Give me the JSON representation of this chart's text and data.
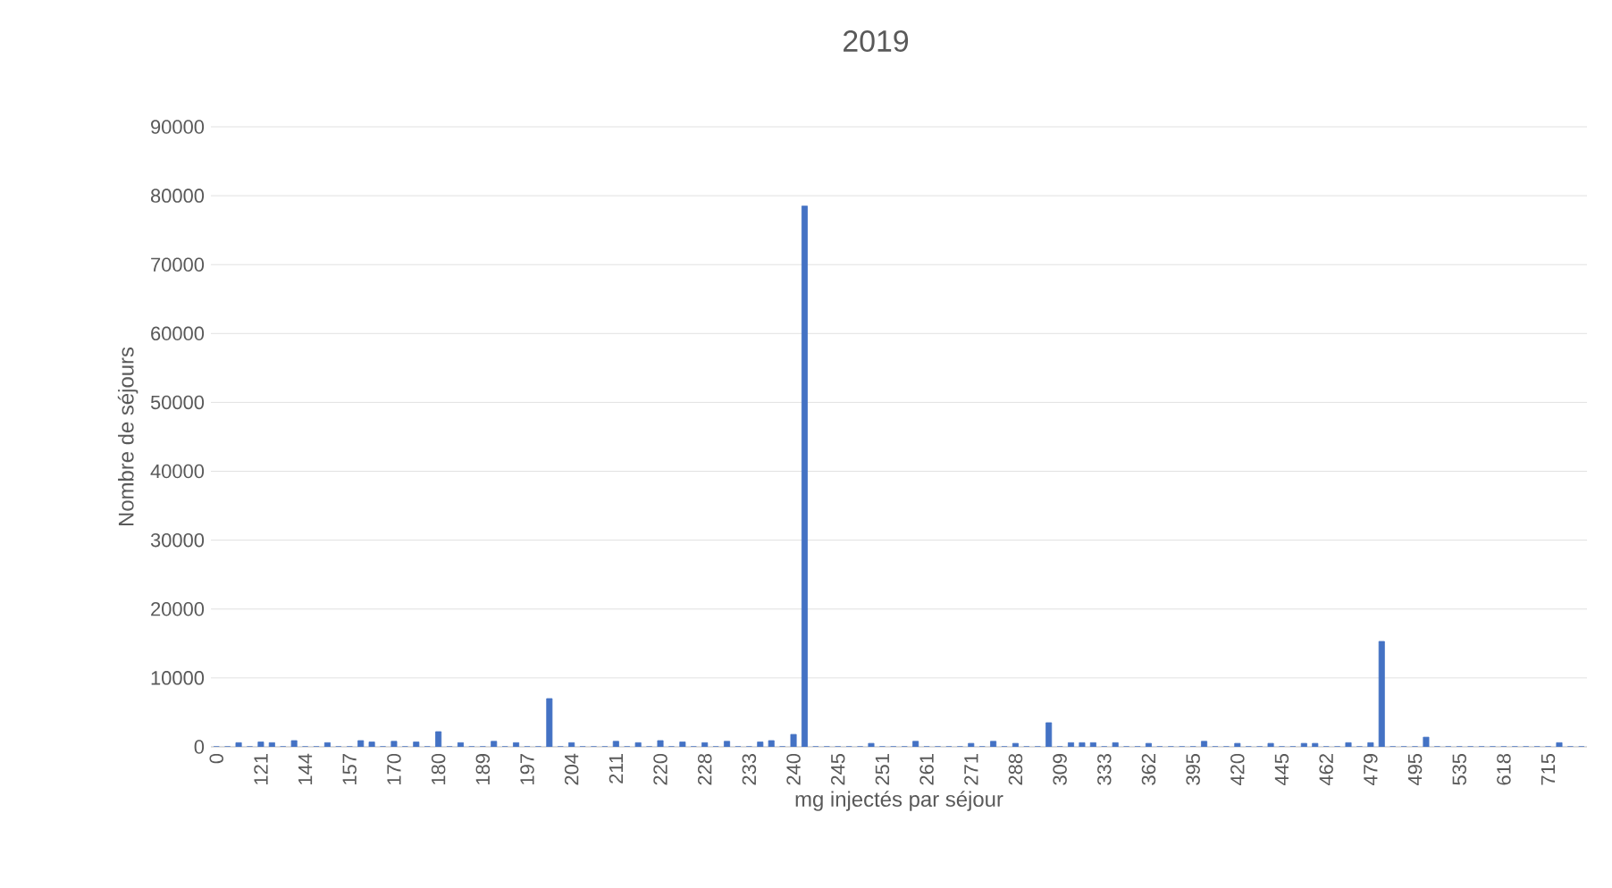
{
  "chart_data": {
    "type": "bar",
    "title": "2019",
    "xlabel": "mg injectés par séjour",
    "ylabel": "Nombre de séjours",
    "categories": [
      "0",
      null,
      null,
      null,
      "121",
      null,
      null,
      null,
      "144",
      null,
      null,
      null,
      "157",
      null,
      null,
      null,
      "170",
      null,
      null,
      null,
      "180",
      null,
      null,
      null,
      "189",
      null,
      null,
      null,
      "197",
      null,
      null,
      null,
      "204",
      null,
      null,
      null,
      "211",
      null,
      null,
      null,
      "220",
      null,
      null,
      null,
      "228",
      null,
      null,
      null,
      "233",
      null,
      null,
      null,
      "240",
      null,
      null,
      null,
      "245",
      null,
      null,
      null,
      "251",
      null,
      null,
      null,
      "261",
      null,
      null,
      null,
      "271",
      null,
      null,
      null,
      "288",
      null,
      null,
      null,
      "309",
      null,
      null,
      null,
      "333",
      null,
      null,
      null,
      "362",
      null,
      null,
      null,
      "395",
      null,
      null,
      null,
      "420",
      null,
      null,
      null,
      "445",
      null,
      null,
      null,
      "462",
      null,
      null,
      null,
      "479",
      null,
      null,
      null,
      "495",
      null,
      null,
      null,
      "535",
      null,
      null,
      null,
      "618",
      null,
      null,
      null,
      "715",
      null,
      null,
      null
    ],
    "values": [
      0,
      0,
      600,
      0,
      700,
      600,
      0,
      900,
      0,
      0,
      600,
      0,
      0,
      900,
      700,
      0,
      800,
      0,
      700,
      0,
      2200,
      0,
      600,
      0,
      0,
      800,
      0,
      600,
      0,
      0,
      7000,
      0,
      600,
      0,
      0,
      0,
      800,
      0,
      600,
      0,
      900,
      0,
      700,
      0,
      600,
      0,
      800,
      0,
      0,
      700,
      900,
      0,
      1800,
      78500,
      0,
      0,
      0,
      0,
      0,
      500,
      0,
      0,
      0,
      800,
      0,
      0,
      0,
      0,
      500,
      0,
      800,
      0,
      500,
      0,
      0,
      3500,
      0,
      600,
      600,
      600,
      0,
      600,
      0,
      0,
      500,
      0,
      0,
      0,
      0,
      800,
      0,
      0,
      500,
      0,
      0,
      500,
      0,
      0,
      500,
      500,
      0,
      0,
      600,
      0,
      600,
      15300,
      0,
      0,
      0,
      1400,
      0,
      0,
      0,
      0,
      0,
      0,
      0,
      0,
      0,
      0,
      0,
      600,
      0,
      0
    ],
    "color": "#4472c4",
    "ylim": [
      0,
      90000
    ],
    "yticks": [
      0,
      10000,
      20000,
      30000,
      40000,
      50000,
      60000,
      70000,
      80000,
      90000
    ],
    "grid": "y"
  }
}
